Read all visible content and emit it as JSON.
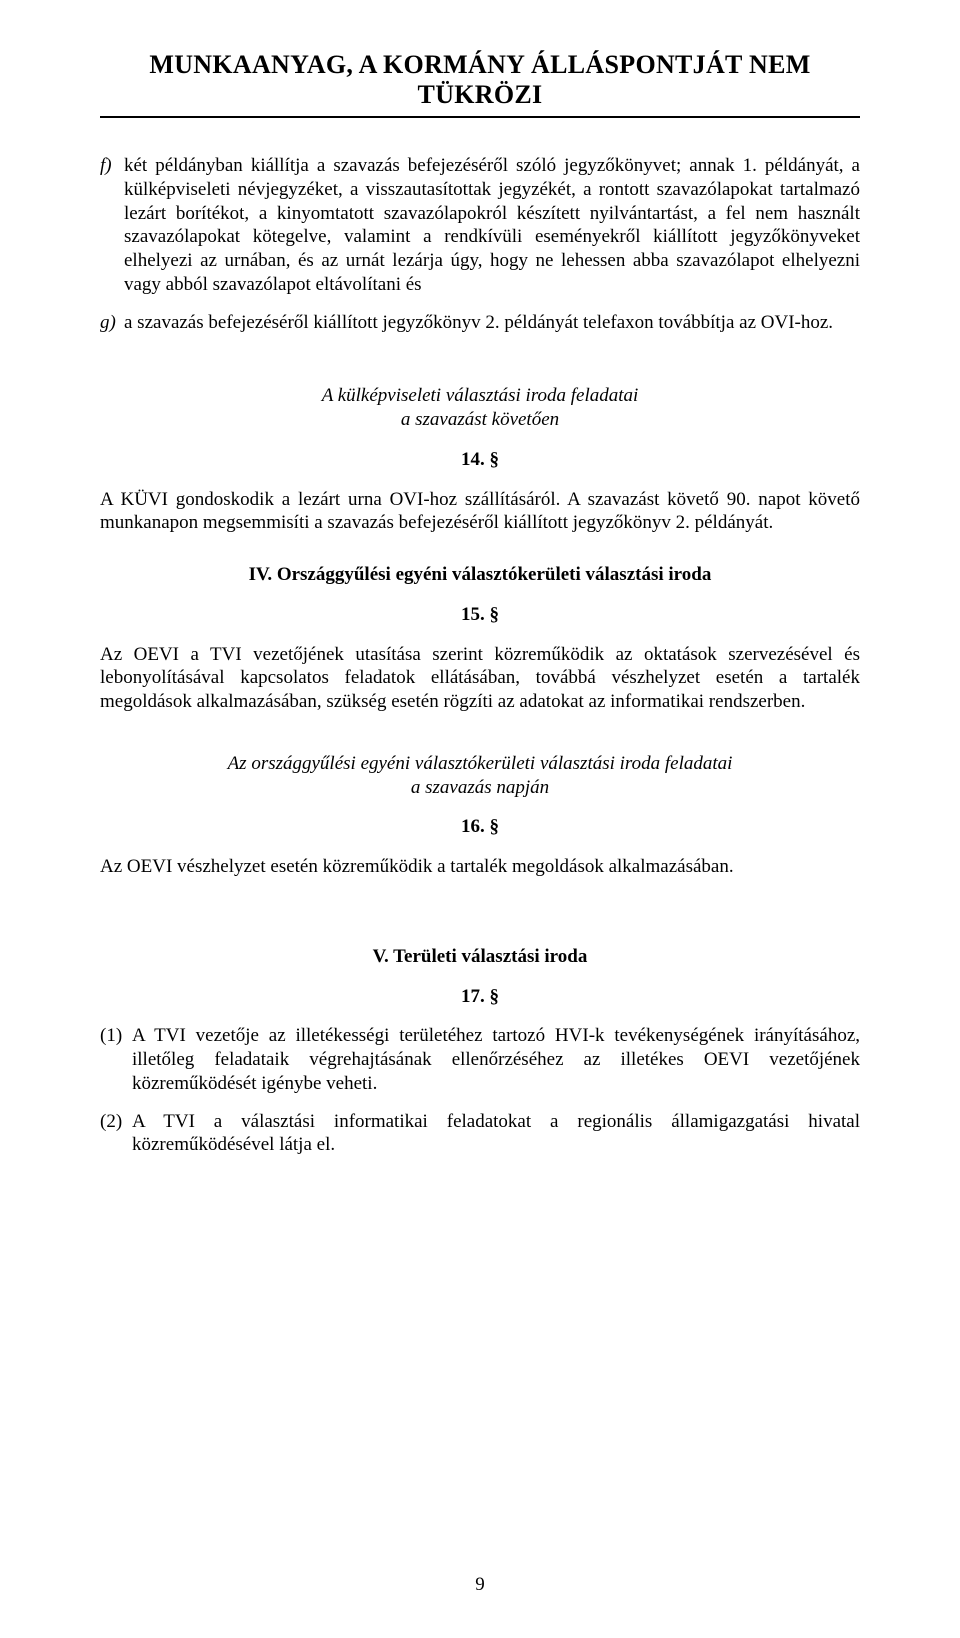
{
  "header": {
    "title": "MUNKAANYAG, A KORMÁNY ÁLLÁSPONTJÁT NEM TÜKRÖZI"
  },
  "items": {
    "f": {
      "marker": "f)",
      "text": "két példányban kiállítja a szavazás befejezéséről szóló jegyzőkönyvet; annak 1. példányát, a külképviseleti névjegyzéket, a visszautasítottak jegyzékét, a rontott szavazólapokat tartalmazó lezárt borítékot, a kinyomtatott szavazólapokról készített nyilvántartást, a fel nem használt szavazólapokat kötegelve, valamint a rendkívüli eseményekről kiállított jegyzőkönyveket elhelyezi az urnában, és az urnát lezárja úgy, hogy ne lehessen abba szavazólapot elhelyezni vagy abból szavazólapot eltávolítani és"
    },
    "g": {
      "marker": "g)",
      "text": "a szavazás befejezéséről kiállított jegyzőkönyv 2. példányát telefaxon továbbítja az OVI-hoz."
    }
  },
  "section_kuvi": {
    "heading_line1": "A külképviseleti választási iroda feladatai",
    "heading_line2": "a szavazást követően",
    "number": "14. §",
    "para": "A KÜVI gondoskodik a lezárt urna OVI-hoz szállításáról. A szavazást követő 90. napot követő munkanapon megsemmisíti a szavazás befejezéséről kiállított jegyzőkönyv 2. példányát."
  },
  "section_iv": {
    "heading": "IV. Országgyűlési egyéni választókerületi választási iroda",
    "number": "15. §",
    "para": "Az OEVI a TVI vezetőjének utasítása szerint közreműködik az oktatások szervezésével és lebonyolításával kapcsolatos feladatok ellátásában, továbbá vészhelyzet esetén a tartalék megoldások alkalmazásában, szükség esetén rögzíti az adatokat az informatikai rendszerben."
  },
  "section_oevi_day": {
    "heading_line1": "Az országgyűlési egyéni választókerületi választási iroda feladatai",
    "heading_line2": "a szavazás napján",
    "number": "16. §",
    "para": "Az OEVI vészhelyzet esetén közreműködik a tartalék megoldások alkalmazásában."
  },
  "section_v": {
    "heading": "V. Területi választási iroda",
    "number": "17. §",
    "item1_marker": "(1)",
    "item1_text": "A TVI vezetője az illetékességi területéhez tartozó HVI-k tevékenységének irányításához, illetőleg feladataik végrehajtásának ellenőrzéséhez az illetékes OEVI vezetőjének közreműködését igénybe veheti.",
    "item2_marker": "(2)",
    "item2_text": "A TVI a választási informatikai feladatokat a regionális államigazgatási hivatal közreműködésével látja el."
  },
  "page_number": "9"
}
